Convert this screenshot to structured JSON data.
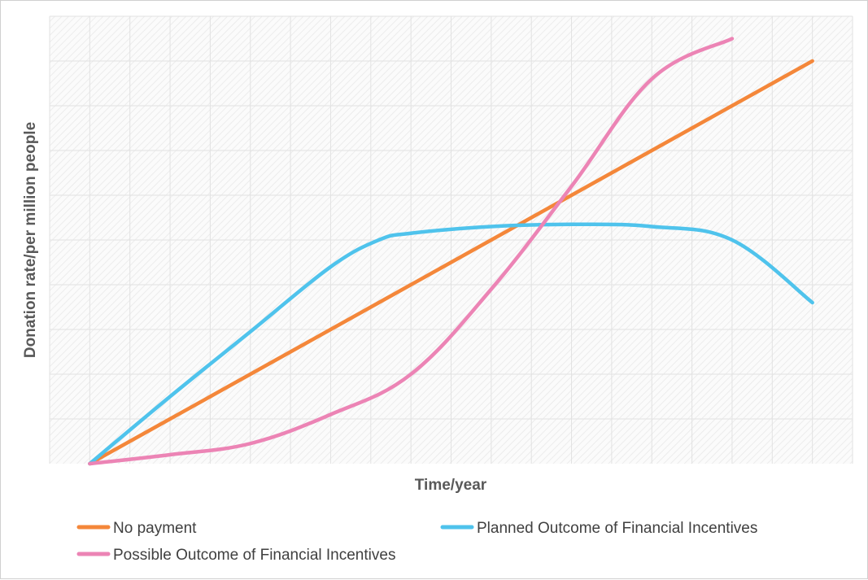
{
  "chart_data": {
    "type": "line",
    "xlabel": "Time/year",
    "ylabel": "Donation rate/per million people",
    "x": [
      0,
      1,
      2,
      3,
      4,
      5,
      6,
      7,
      8,
      9
    ],
    "xlim": [
      -0.5,
      9.5
    ],
    "ylim": [
      0,
      10
    ],
    "grid": true,
    "legend_position": "bottom",
    "series": [
      {
        "name": "No payment",
        "color": "#F4873A",
        "x": [
          0,
          1,
          2,
          3,
          4,
          5,
          6,
          7,
          8,
          9
        ],
        "values": [
          0,
          1.0,
          2.0,
          3.0,
          4.0,
          5.0,
          6.0,
          7.0,
          8.0,
          9.0
        ]
      },
      {
        "name": "Planned Outcome of Financial Incentives",
        "color": "#4FC3EC",
        "x": [
          0,
          1,
          2,
          3,
          3.6,
          4,
          5,
          6,
          7,
          8,
          9
        ],
        "values": [
          0,
          1.5,
          2.95,
          4.4,
          5.0,
          5.15,
          5.3,
          5.35,
          5.3,
          5.0,
          3.6
        ]
      },
      {
        "name": "Possible Outcome of Financial Incentives",
        "color": "#EC84B5",
        "x": [
          0,
          1,
          2,
          3,
          4,
          5,
          6,
          7,
          8
        ],
        "values": [
          0,
          0.2,
          0.45,
          1.1,
          2.0,
          3.9,
          6.2,
          8.6,
          9.5
        ]
      }
    ]
  }
}
